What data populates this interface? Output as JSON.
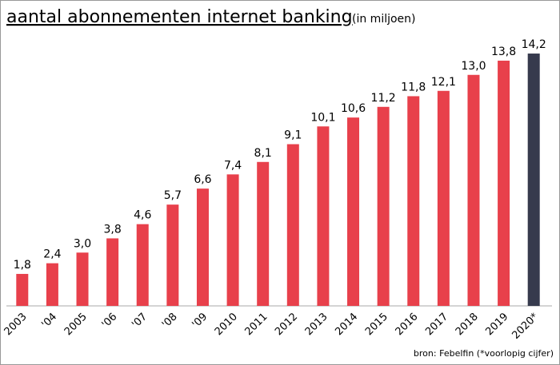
{
  "chart_data": {
    "type": "bar",
    "title": "aantal abonnementen internet banking",
    "subtitle": "(in miljoen)",
    "source": "bron: Febelfin (*voorlopig cijfer)",
    "categories": [
      "2003",
      "'04",
      "2005",
      "'06",
      "'07",
      "'08",
      "'09",
      "2010",
      "2011",
      "2012",
      "2013",
      "2014",
      "2015",
      "2016",
      "2017",
      "2018",
      "2019",
      "2020*"
    ],
    "values": [
      1.8,
      2.4,
      3.0,
      3.8,
      4.6,
      5.7,
      6.6,
      7.4,
      8.1,
      9.1,
      10.1,
      10.6,
      11.2,
      11.8,
      12.1,
      13.0,
      13.8,
      14.2
    ],
    "value_labels": [
      "1,8",
      "2,4",
      "3,0",
      "3,8",
      "4,6",
      "5,7",
      "6,6",
      "7,4",
      "8,1",
      "9,1",
      "10,1",
      "10,6",
      "11,2",
      "11,8",
      "12,1",
      "13,0",
      "13,8",
      "14,2"
    ],
    "colors": [
      "#e8404b",
      "#e8404b",
      "#e8404b",
      "#e8404b",
      "#e8404b",
      "#e8404b",
      "#e8404b",
      "#e8404b",
      "#e8404b",
      "#e8404b",
      "#e8404b",
      "#e8404b",
      "#e8404b",
      "#e8404b",
      "#e8404b",
      "#e8404b",
      "#e8404b",
      "#363a4d"
    ],
    "ylim": [
      0,
      15
    ]
  }
}
